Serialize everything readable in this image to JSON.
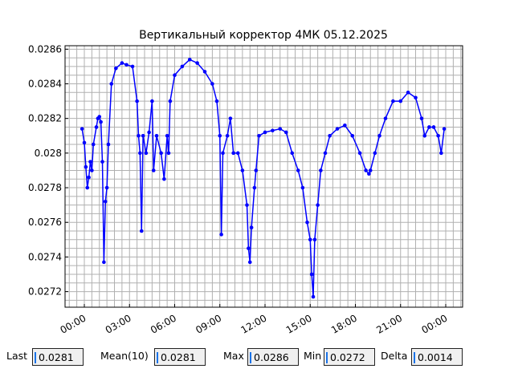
{
  "chart_data": {
    "type": "line",
    "title": "Вертикальный корректор 4МК 05.12.2025",
    "x": [
      -0.15,
      0.0,
      0.1,
      0.2,
      0.3,
      0.4,
      0.5,
      0.6,
      0.8,
      0.9,
      1.0,
      1.1,
      1.2,
      1.3,
      1.4,
      1.5,
      1.6,
      1.8,
      2.1,
      2.5,
      2.8,
      3.2,
      3.5,
      3.6,
      3.7,
      3.8,
      3.9,
      4.1,
      4.3,
      4.5,
      4.6,
      4.8,
      5.1,
      5.3,
      5.5,
      5.6,
      5.7,
      6.0,
      6.5,
      7.0,
      7.5,
      8.0,
      8.5,
      8.8,
      9.0,
      9.1,
      9.2,
      9.5,
      9.7,
      9.9,
      10.2,
      10.5,
      10.8,
      10.9,
      11.0,
      11.1,
      11.3,
      11.4,
      11.6,
      12.0,
      12.5,
      13.0,
      13.4,
      13.8,
      14.2,
      14.5,
      14.8,
      15.0,
      15.1,
      15.2,
      15.3,
      15.5,
      15.7,
      16.0,
      16.3,
      16.8,
      17.3,
      17.8,
      18.3,
      18.7,
      18.9,
      19.0,
      19.3,
      19.6,
      20.0,
      20.5,
      21.0,
      21.5,
      22.0,
      22.4,
      22.6,
      22.9,
      23.2,
      23.5,
      23.7,
      23.9
    ],
    "values": [
      0.02814,
      0.02806,
      0.02792,
      0.0278,
      0.02786,
      0.02795,
      0.0279,
      0.02805,
      0.02815,
      0.0282,
      0.02821,
      0.02818,
      0.02795,
      0.02737,
      0.02772,
      0.0278,
      0.02805,
      0.0284,
      0.02849,
      0.02852,
      0.02851,
      0.0285,
      0.0283,
      0.0281,
      0.028,
      0.02755,
      0.0281,
      0.028,
      0.02812,
      0.0283,
      0.0279,
      0.0281,
      0.028,
      0.02785,
      0.0281,
      0.028,
      0.0283,
      0.02845,
      0.0285,
      0.02854,
      0.02852,
      0.02847,
      0.0284,
      0.0283,
      0.0281,
      0.02753,
      0.028,
      0.0281,
      0.0282,
      0.028,
      0.028,
      0.0279,
      0.0277,
      0.02745,
      0.02737,
      0.02757,
      0.0278,
      0.0279,
      0.0281,
      0.02812,
      0.02813,
      0.02814,
      0.02812,
      0.028,
      0.0279,
      0.0278,
      0.0276,
      0.0275,
      0.0273,
      0.02717,
      0.0275,
      0.0277,
      0.0279,
      0.028,
      0.0281,
      0.02814,
      0.02816,
      0.0281,
      0.028,
      0.0279,
      0.02788,
      0.0279,
      0.028,
      0.0281,
      0.0282,
      0.0283,
      0.0283,
      0.02835,
      0.02832,
      0.0282,
      0.0281,
      0.02815,
      0.02815,
      0.0281,
      0.028,
      0.02814
    ],
    "color": "#0000ff",
    "xlim": [
      -1.28,
      25.12
    ],
    "xticks": [
      {
        "value": 0,
        "label": "00:00"
      },
      {
        "value": 3,
        "label": "03:00"
      },
      {
        "value": 6,
        "label": "06:00"
      },
      {
        "value": 9,
        "label": "09:00"
      },
      {
        "value": 12,
        "label": "12:00"
      },
      {
        "value": 15,
        "label": "15:00"
      },
      {
        "value": 18,
        "label": "18:00"
      },
      {
        "value": 21,
        "label": "21:00"
      },
      {
        "value": 24,
        "label": "00:00"
      }
    ],
    "ylim": [
      0.02711,
      0.02862
    ],
    "yticks": [
      0.0272,
      0.0274,
      0.0276,
      0.0278,
      0.028,
      0.0282,
      0.0284,
      0.0286
    ],
    "grid": true,
    "x_minor_step": 0.5,
    "y_minor_step": 5e-05
  },
  "stats": [
    {
      "label": "Last",
      "value": "0.0281"
    },
    {
      "label": "Mean(10)",
      "value": "0.0281"
    },
    {
      "label": "Max",
      "value": "0.0286"
    },
    {
      "label": "Min",
      "value": "0.0272"
    },
    {
      "label": "Delta",
      "value": "0.0014"
    }
  ]
}
